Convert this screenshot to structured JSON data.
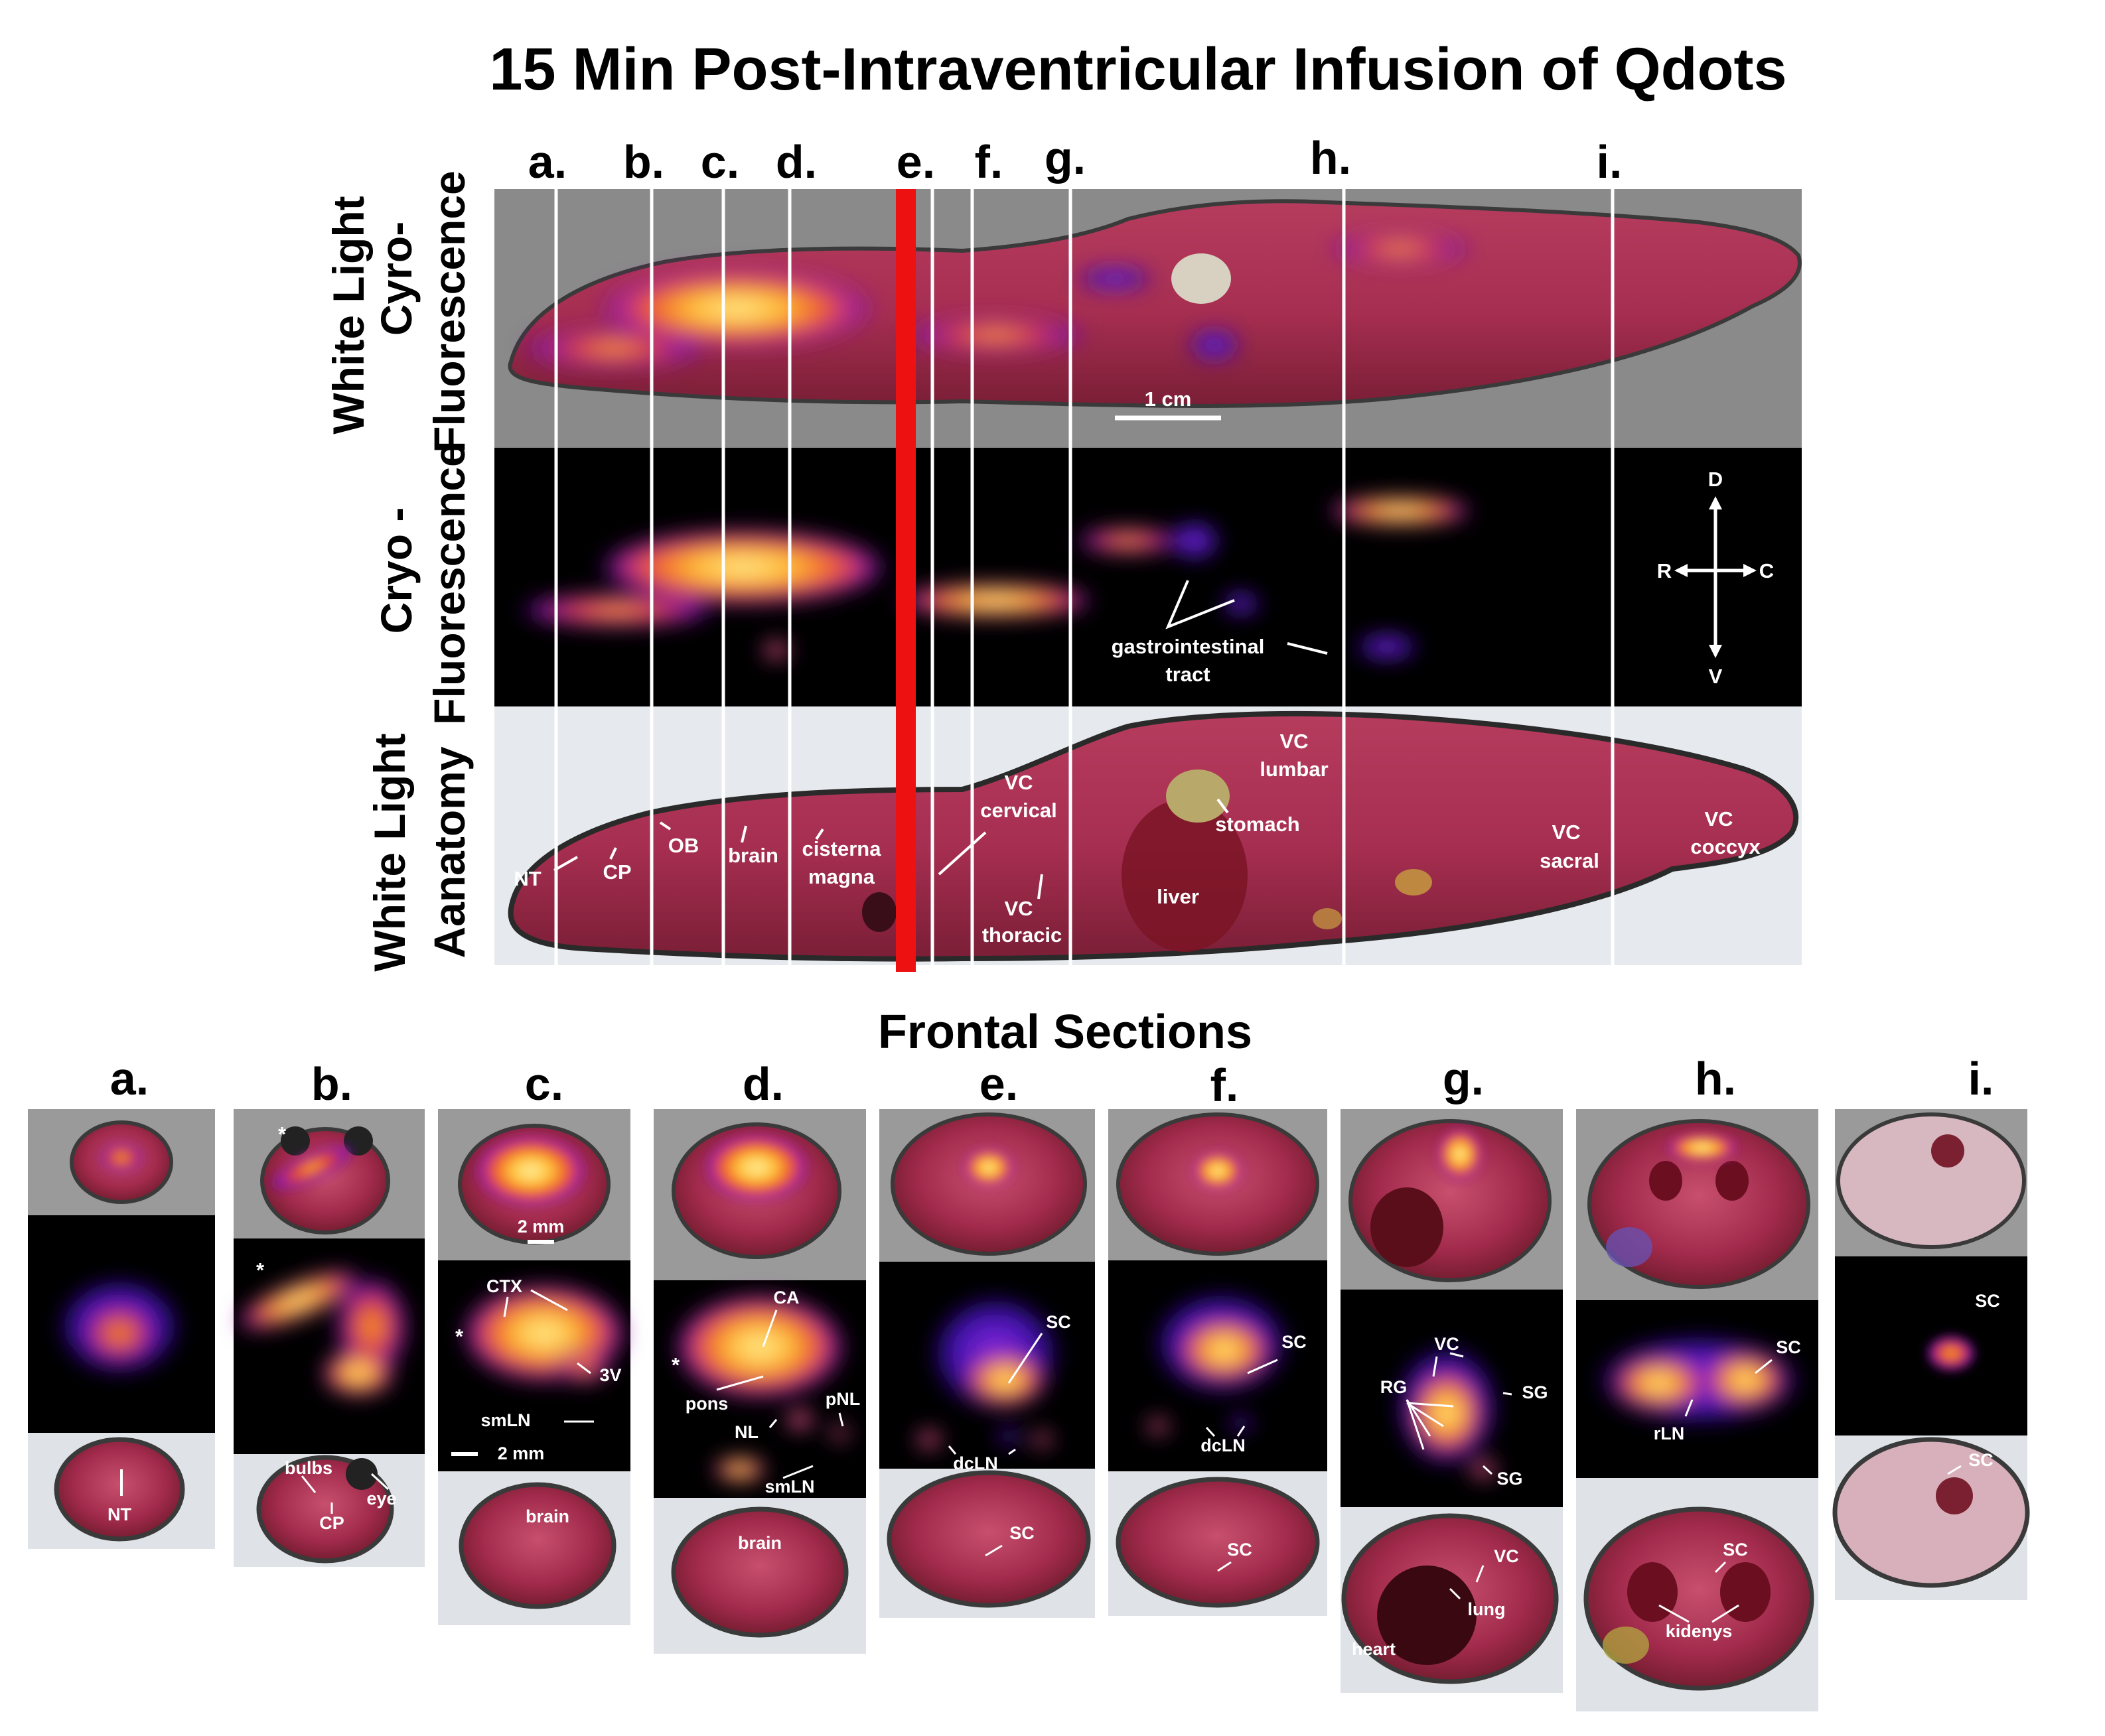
{
  "title": "15 Min Post-Intraventricular Infusion of Qdots",
  "sagittal": {
    "column_letters": [
      "a.",
      "b.",
      "c.",
      "d.",
      "e.",
      "f.",
      "g.",
      "h.",
      "i."
    ],
    "rows": [
      {
        "id": "overlay",
        "label_line1": "White Light",
        "label_line2": "Cyro-",
        "label_line3": "Fluorescence"
      },
      {
        "id": "fluor",
        "label_line1": "Cryo -",
        "label_line2": "Fluorescence"
      },
      {
        "id": "anatomy",
        "label_line1": "White Light",
        "label_line2": "Aanatomy"
      }
    ],
    "scale_bar": "1 cm",
    "orientation": {
      "d": "D",
      "v": "V",
      "r": "R",
      "c": "C"
    },
    "fluor_labels": {
      "gi_line1": "gastrointestinal",
      "gi_line2": "tract"
    },
    "anatomy_labels": {
      "nt": "NT",
      "cp": "CP",
      "ob": "OB",
      "brain": "brain",
      "cisterna1": "cisterna",
      "cisterna2": "magna",
      "vc_cervical1": "VC",
      "vc_cervical2": "cervical",
      "vc_thoracic1": "VC",
      "vc_thoracic2": "thoracic",
      "liver": "liver",
      "stomach": "stomach",
      "vc_lumbar1": "VC",
      "vc_lumbar2": "lumbar",
      "vc_sacral1": "VC",
      "vc_sacral2": "sacral",
      "vc_coccyx1": "VC",
      "vc_coccyx2": "coccyx"
    },
    "colors": {
      "cut_marker": "#ee1111",
      "fluor_hot": "#ffd23a",
      "fluor_cool": "#5a10c8"
    }
  },
  "frontal": {
    "heading": "Frontal Sections",
    "scale_bar": "2 mm",
    "labels": {
      "a_nt": "NT",
      "b_star": "*",
      "b_bulbs": "bulbs",
      "b_eye": "eye",
      "b_cp": "CP",
      "c_ctx": "CTX",
      "c_star": "*",
      "c_3v": "3V",
      "c_smln": "smLN",
      "c_brain": "brain",
      "d_ca": "CA",
      "d_star": "*",
      "d_pons": "pons",
      "d_nl": "NL",
      "d_pnl": "pNL",
      "d_smln": "smLN",
      "d_brain": "brain",
      "e_sc": "SC",
      "e_dcln": "dcLN",
      "e_sc2": "SC",
      "f_sc": "SC",
      "f_dcln": "dcLN",
      "f_sc2": "SC",
      "g_vc": "VC",
      "g_rg": "RG",
      "g_sg": "SG",
      "g_sg2": "SG",
      "g_vc2": "VC",
      "g_lung": "lung",
      "g_heart": "heart",
      "h_sc": "SC",
      "h_rln": "rLN",
      "h_sc2": "SC",
      "h_kidneys": "kidenys",
      "i_sc": "SC",
      "i_sc2": "SC"
    }
  }
}
